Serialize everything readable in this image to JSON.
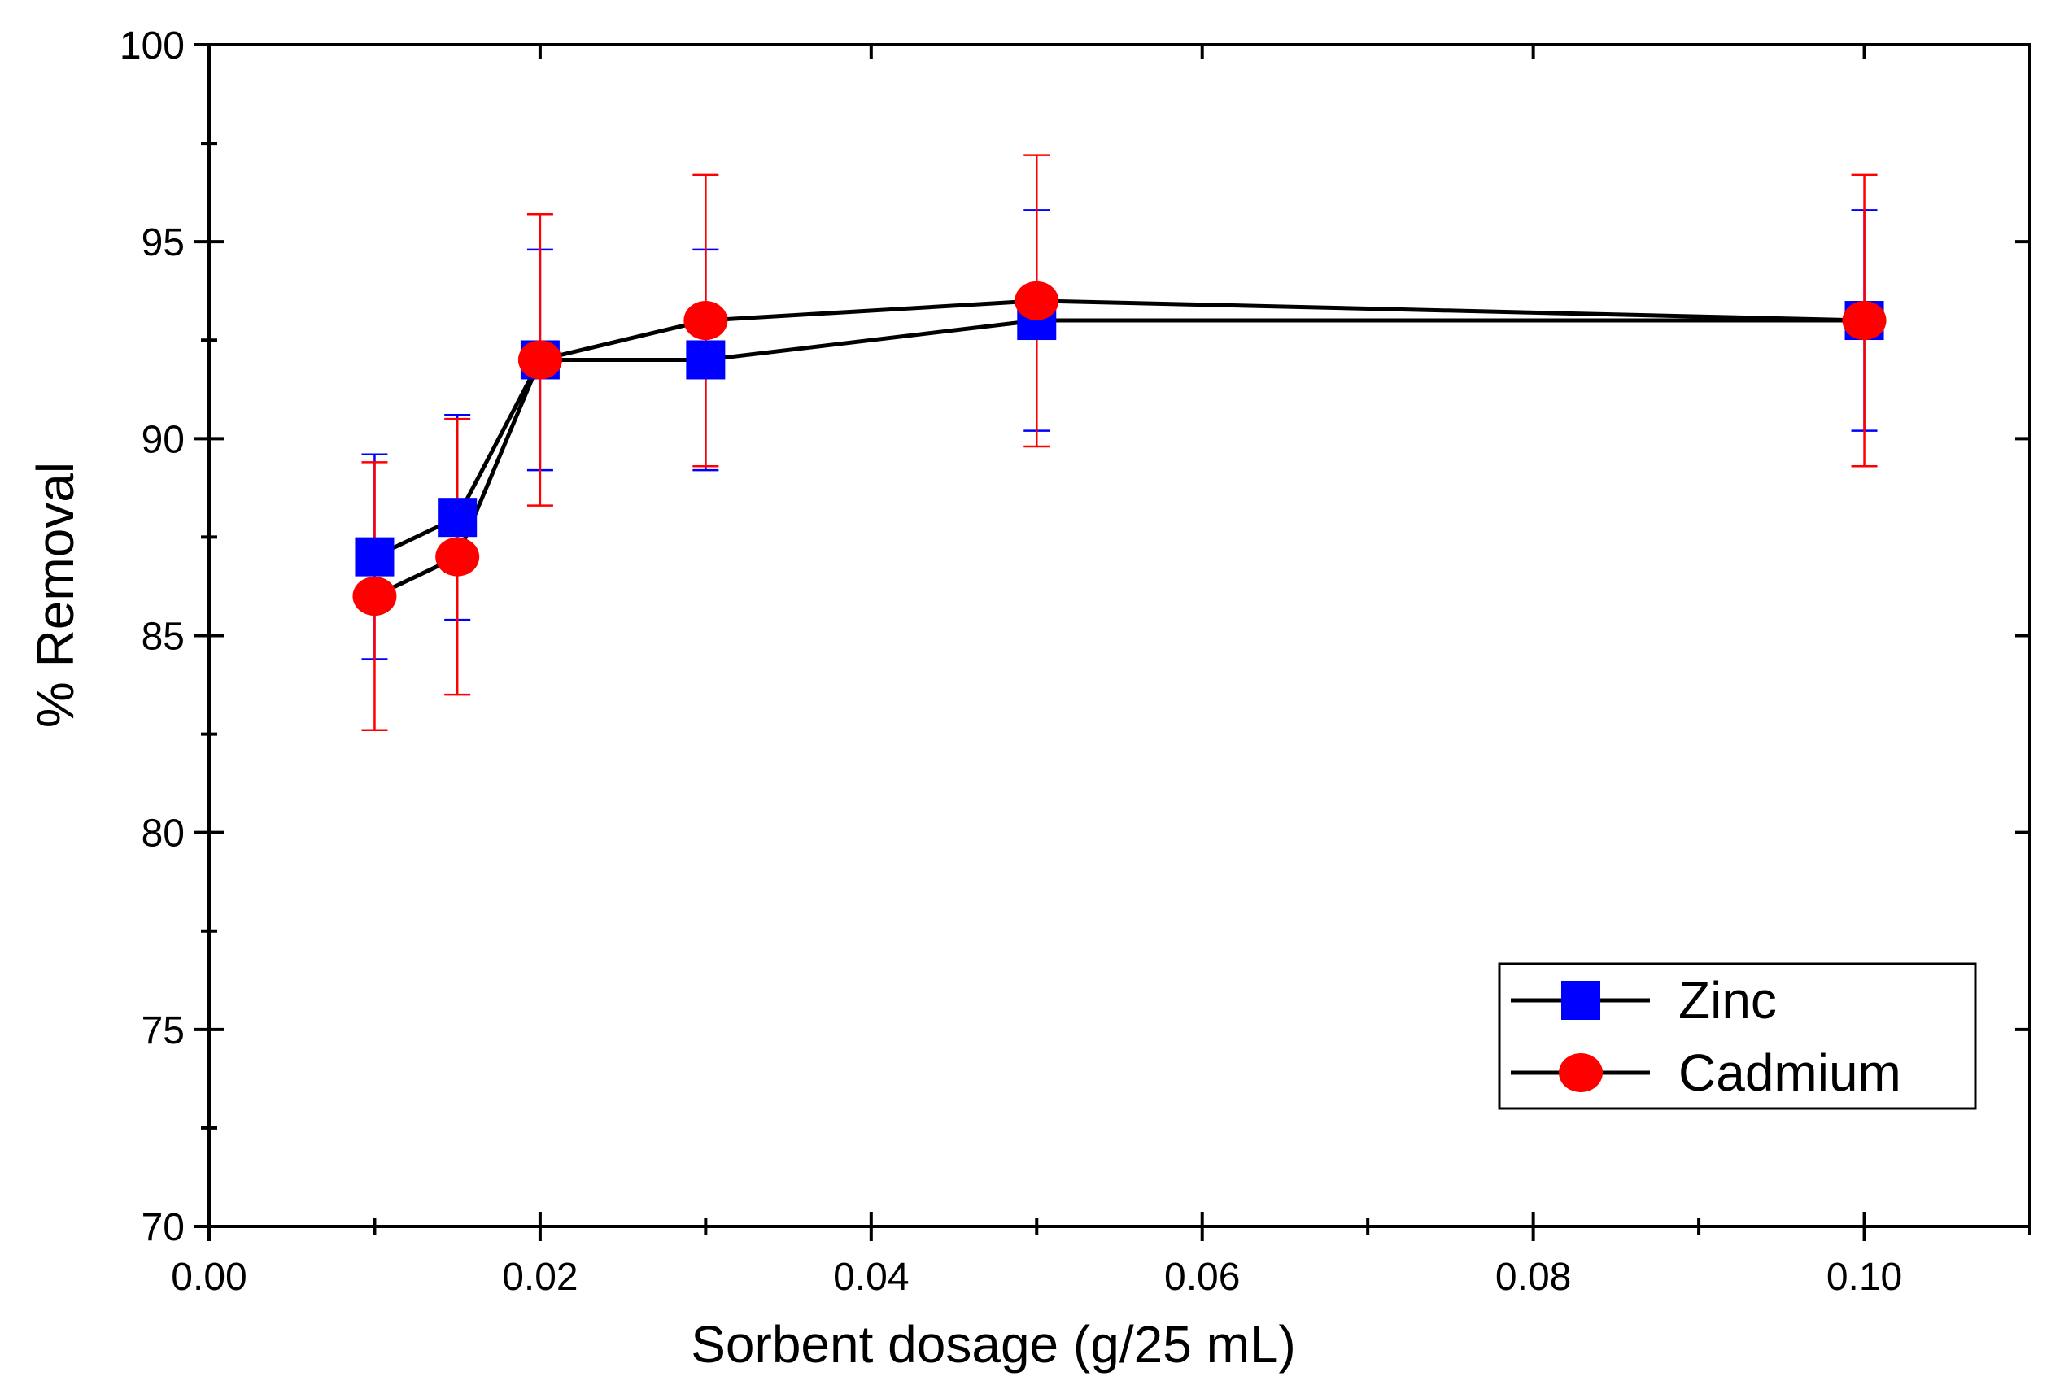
{
  "chart_data": {
    "type": "line",
    "title": "",
    "xlabel": "Sorbent dosage (g/25 mL)",
    "ylabel": "% Removal",
    "xlim": [
      0.0,
      0.11
    ],
    "ylim": [
      70,
      100
    ],
    "xticks": [
      0.0,
      0.02,
      0.04,
      0.06,
      0.08,
      0.1
    ],
    "xtick_labels": [
      "0.00",
      "0.02",
      "0.04",
      "0.06",
      "0.08",
      "0.10"
    ],
    "x_minor_step": 0.01,
    "yticks": [
      70,
      75,
      80,
      85,
      90,
      95,
      100
    ],
    "ytick_labels": [
      "70",
      "75",
      "80",
      "85",
      "90",
      "95",
      "100"
    ],
    "y_minor_step": 2.5,
    "legend_position": "bottom-right",
    "series": [
      {
        "name": "Zinc",
        "marker": "square",
        "marker_color": "#0000ff",
        "line_color": "#000000",
        "errorbar_color": "#0000ff",
        "x": [
          0.01,
          0.015,
          0.02,
          0.03,
          0.05,
          0.1
        ],
        "y": [
          87.0,
          88.0,
          92.0,
          92.0,
          93.0,
          93.0
        ],
        "error": [
          2.6,
          2.6,
          2.8,
          2.8,
          2.8,
          2.8
        ]
      },
      {
        "name": "Cadmium",
        "marker": "circle",
        "marker_color": "#ff0000",
        "line_color": "#000000",
        "errorbar_color": "#ff0000",
        "x": [
          0.01,
          0.015,
          0.02,
          0.03,
          0.05,
          0.1
        ],
        "y": [
          86.0,
          87.0,
          92.0,
          93.0,
          93.5,
          93.0
        ],
        "error": [
          3.4,
          3.5,
          3.7,
          3.7,
          3.7,
          3.7
        ]
      }
    ]
  }
}
